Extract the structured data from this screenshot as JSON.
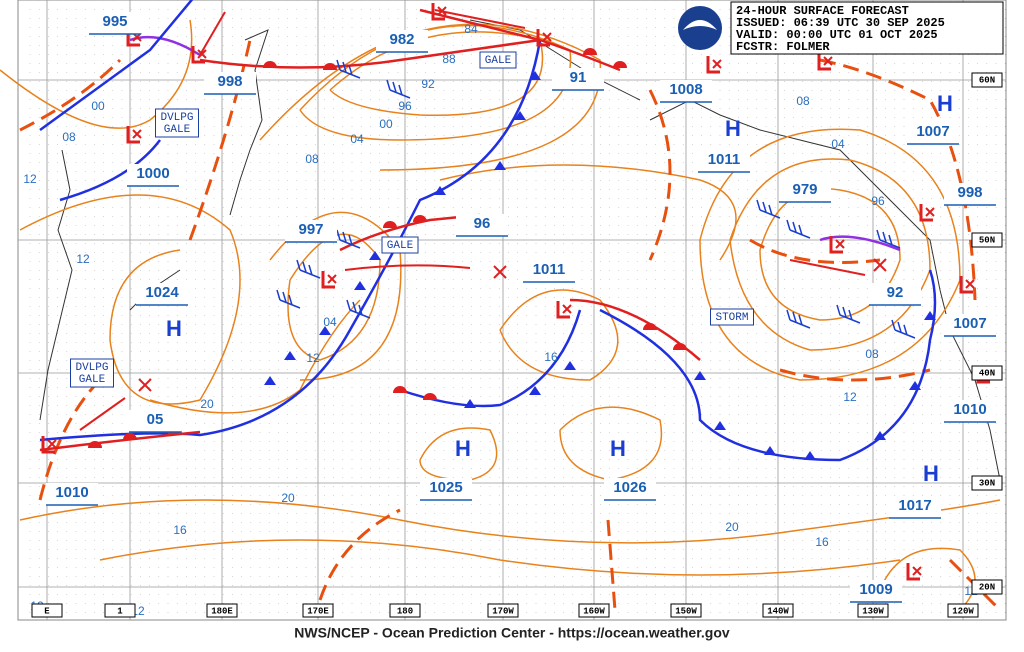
{
  "header": {
    "title": "24-HOUR SURFACE FORECAST",
    "issued": "ISSUED: 06:39 UTC 30 SEP 2025",
    "valid": "VALID:  00:00 UTC 01 OCT 2025",
    "forecaster": "FCSTR:  FOLMER"
  },
  "pressure_centers": [
    "995",
    "982",
    "998",
    "91",
    "1008",
    "1000",
    "1011",
    "979",
    "998",
    "997",
    "96",
    "1011",
    "1024",
    "1007",
    "92",
    "1007",
    "05",
    "1010",
    "1010",
    "1025",
    "1026",
    "1017",
    "1009"
  ],
  "highs": [
    "H",
    "H",
    "H",
    "H",
    "H",
    "H"
  ],
  "warnings": [
    [
      "DVLPG",
      "GALE"
    ],
    [
      "GALE"
    ],
    [
      "GALE"
    ],
    [
      "STORM"
    ],
    [
      "DVLPG",
      "GALE"
    ]
  ],
  "isobar_labels": [
    "84",
    "88",
    "92",
    "96",
    "00",
    "04",
    "08",
    "00",
    "08",
    "12",
    "12",
    "04",
    "12",
    "16",
    "20",
    "20",
    "16",
    "20",
    "16",
    "12",
    "08",
    "96",
    "04",
    "08",
    "12",
    "12",
    "12"
  ],
  "lon_labels": [
    "E",
    "1",
    "180E",
    "170E",
    "180",
    "170W",
    "160W",
    "150W",
    "140W",
    "130W",
    "120W"
  ],
  "lat_labels": [
    "60N",
    "50N",
    "40N",
    "30N",
    "20N"
  ],
  "footer": "NWS/NCEP - Ocean Prediction Center - https://ocean.weather.gov"
}
